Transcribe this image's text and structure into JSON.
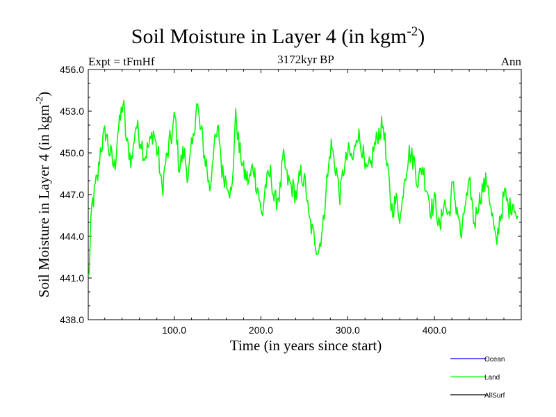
{
  "chart_data": {
    "type": "line",
    "title": "Soil Moisture in Layer 4 (in kgm",
    "title_superscript": "-2",
    "title_suffix": ")",
    "subtitle_left": "Expt = tFmHf",
    "subtitle_center": "3172kyr BP",
    "subtitle_right": "Ann",
    "xlabel": "Time (in years since start)",
    "ylabel": "Soil Moisture in Layer 4 (in kgm",
    "ylabel_superscript": "-2",
    "ylabel_suffix": ")",
    "xlim": [
      1,
      500
    ],
    "ylim": [
      438,
      456
    ],
    "x_ticks": [
      100,
      200,
      300,
      400
    ],
    "x_tick_labels": [
      "100.0",
      "200.0",
      "300.0",
      "400.0"
    ],
    "y_ticks": [
      438,
      441,
      444,
      447,
      450,
      453,
      456
    ],
    "y_tick_labels": [
      "438.0",
      "441.0",
      "444.0",
      "447.0",
      "450.0",
      "453.0",
      "456.0"
    ],
    "legend": [
      {
        "name": "Ocean",
        "color": "#0000ff"
      },
      {
        "name": "Land",
        "color": "#00ff00"
      },
      {
        "name": "AllSurf",
        "color": "#000000"
      }
    ],
    "series": [
      {
        "name": "Land",
        "color": "#00ff00",
        "x_start": 1,
        "x_step": 5,
        "values": [
          441.0,
          446.5,
          448.0,
          450.5,
          451.5,
          450.0,
          449.0,
          451.8,
          453.5,
          450.5,
          449.5,
          452.0,
          451.0,
          449.8,
          450.5,
          451.5,
          450.0,
          447.5,
          449.5,
          451.0,
          452.5,
          449.0,
          450.0,
          448.5,
          450.5,
          453.5,
          451.5,
          449.5,
          447.5,
          450.5,
          451.5,
          448.5,
          448.0,
          447.0,
          452.5,
          450.0,
          448.5,
          448.0,
          449.0,
          447.5,
          445.5,
          447.8,
          448.5,
          446.5,
          447.0,
          449.5,
          448.0,
          447.5,
          447.0,
          448.5,
          447.8,
          445.0,
          444.0,
          443.0,
          444.5,
          448.0,
          450.5,
          449.0,
          447.0,
          449.0,
          450.0,
          449.5,
          451.5,
          450.5,
          448.5,
          449.0,
          450.5,
          451.5,
          452.0,
          448.5,
          446.0,
          446.5,
          445.5,
          448.5,
          450.0,
          449.5,
          448.0,
          449.0,
          447.5,
          446.0,
          446.5,
          444.5,
          446.5,
          445.5,
          447.5,
          446.0,
          444.0,
          446.5,
          447.5,
          445.0,
          446.5,
          447.5,
          448.0,
          445.5,
          443.5,
          445.5,
          447.0,
          446.0,
          446.5,
          445.0
        ]
      }
    ]
  }
}
